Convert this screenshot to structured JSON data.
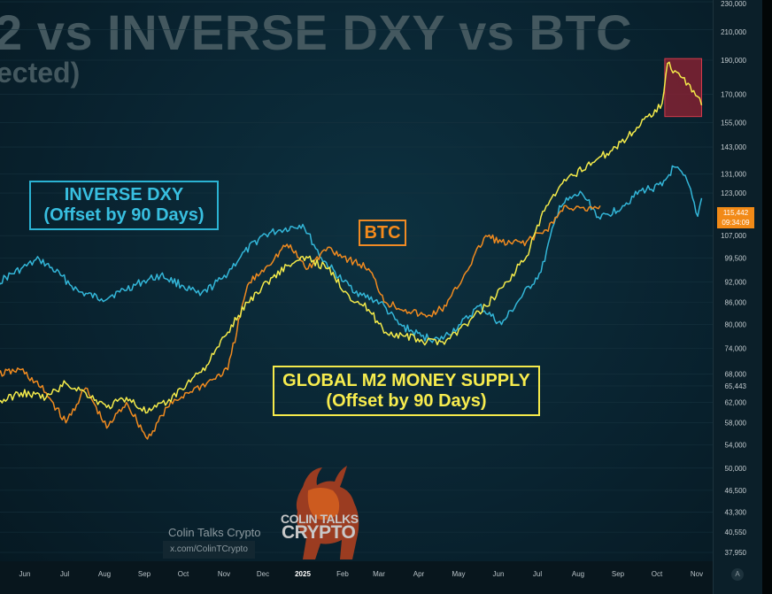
{
  "titles": {
    "main": "2 vs INVERSE DXY vs BTC",
    "sub": "ected)"
  },
  "labels": {
    "dxy_line1": "INVERSE DXY",
    "dxy_line2": "(Offset by 90 Days)",
    "btc": "BTC",
    "m2_line1": "GLOBAL M2 MONEY SUPPLY",
    "m2_line2": "(Offset by 90 Days)"
  },
  "price_tag": {
    "price": "115,442",
    "time": "09:34:09"
  },
  "watermark": {
    "name": "Colin Talks Crypto",
    "url": "x.com/ColinTCrypto",
    "logo_line1": "COLIN TALKS",
    "logo_line2": "CRYPTO"
  },
  "axis_button": "A",
  "colors": {
    "m2": "#f3ea4a",
    "btc": "#f08a1f",
    "dxy": "#33b6d8",
    "highlight": "#9b2233"
  },
  "chart_data": {
    "type": "line",
    "scale": "log",
    "y_ticks": [
      230000,
      210000,
      190000,
      170000,
      155000,
      143000,
      131000,
      123000,
      107000,
      99500,
      92000,
      86000,
      80000,
      74000,
      68000,
      65443,
      62000,
      58000,
      54000,
      50000,
      46500,
      43300,
      40550,
      37950
    ],
    "y_tick_labels": [
      "230,000",
      "210,000",
      "190,000",
      "170,000",
      "155,000",
      "143,000",
      "131,000",
      "123,000",
      "107,000",
      "99,500",
      "92,000",
      "86,000",
      "80,000",
      "74,000",
      "68,000",
      "65,443",
      "62,000",
      "58,000",
      "54,000",
      "50,000",
      "46,500",
      "43,300",
      "40,550",
      "37,950"
    ],
    "x_ticks": [
      "Jun",
      "Jul",
      "Aug",
      "Sep",
      "Oct",
      "Nov",
      "Dec",
      "2025",
      "Feb",
      "Mar",
      "Apr",
      "May",
      "Jun",
      "Jul",
      "Aug",
      "Sep",
      "Oct",
      "Nov"
    ],
    "series": [
      {
        "key": "m2",
        "values": [
          [
            "2024-05-15",
            62000
          ],
          [
            "2024-06-01",
            64000
          ],
          [
            "2024-06-20",
            63000
          ],
          [
            "2024-07-05",
            66000
          ],
          [
            "2024-07-20",
            64000
          ],
          [
            "2024-08-05",
            61000
          ],
          [
            "2024-08-20",
            63000
          ],
          [
            "2024-09-05",
            60000
          ],
          [
            "2024-09-20",
            62000
          ],
          [
            "2024-10-05",
            66000
          ],
          [
            "2024-10-20",
            70000
          ],
          [
            "2024-11-05",
            78000
          ],
          [
            "2024-11-20",
            86000
          ],
          [
            "2024-12-05",
            92000
          ],
          [
            "2024-12-20",
            97000
          ],
          [
            "2025-01-05",
            99500
          ],
          [
            "2025-01-20",
            96000
          ],
          [
            "2025-02-05",
            88000
          ],
          [
            "2025-02-20",
            84000
          ],
          [
            "2025-03-05",
            78000
          ],
          [
            "2025-03-20",
            77000
          ],
          [
            "2025-04-05",
            75500
          ],
          [
            "2025-04-20",
            76000
          ],
          [
            "2025-05-05",
            80000
          ],
          [
            "2025-05-20",
            85000
          ],
          [
            "2025-06-05",
            92000
          ],
          [
            "2025-06-20",
            100000
          ],
          [
            "2025-07-05",
            118000
          ],
          [
            "2025-07-20",
            128000
          ],
          [
            "2025-08-05",
            135000
          ],
          [
            "2025-08-20",
            140000
          ],
          [
            "2025-09-05",
            148000
          ],
          [
            "2025-09-20",
            158000
          ],
          [
            "2025-10-01",
            165000
          ],
          [
            "2025-10-05",
            188000
          ],
          [
            "2025-10-15",
            180000
          ],
          [
            "2025-10-25",
            172000
          ],
          [
            "2025-10-31",
            164000
          ]
        ]
      },
      {
        "key": "btc",
        "values": [
          [
            "2024-05-15",
            68000
          ],
          [
            "2024-06-01",
            69000
          ],
          [
            "2024-06-20",
            64000
          ],
          [
            "2024-07-05",
            58000
          ],
          [
            "2024-07-20",
            65000
          ],
          [
            "2024-08-05",
            57000
          ],
          [
            "2024-08-20",
            62000
          ],
          [
            "2024-09-05",
            55000
          ],
          [
            "2024-09-20",
            61000
          ],
          [
            "2024-10-05",
            64000
          ],
          [
            "2024-10-20",
            66000
          ],
          [
            "2024-11-05",
            69000
          ],
          [
            "2024-11-20",
            91000
          ],
          [
            "2024-12-05",
            97000
          ],
          [
            "2024-12-20",
            104000
          ],
          [
            "2025-01-05",
            96000
          ],
          [
            "2025-01-20",
            103000
          ],
          [
            "2025-02-05",
            99000
          ],
          [
            "2025-02-20",
            96000
          ],
          [
            "2025-03-05",
            86000
          ],
          [
            "2025-03-20",
            84000
          ],
          [
            "2025-04-05",
            82000
          ],
          [
            "2025-04-20",
            85000
          ],
          [
            "2025-05-05",
            95000
          ],
          [
            "2025-05-20",
            107000
          ],
          [
            "2025-06-05",
            104000
          ],
          [
            "2025-06-20",
            105000
          ],
          [
            "2025-07-05",
            109000
          ],
          [
            "2025-07-20",
            118000
          ],
          [
            "2025-08-05",
            116000
          ],
          [
            "2025-08-15",
            118000
          ]
        ]
      },
      {
        "key": "dxy",
        "values": [
          [
            "2024-05-15",
            92000
          ],
          [
            "2024-06-01",
            96000
          ],
          [
            "2024-06-15",
            99000
          ],
          [
            "2024-07-01",
            94000
          ],
          [
            "2024-07-15",
            89000
          ],
          [
            "2024-08-01",
            87000
          ],
          [
            "2024-08-15",
            89000
          ],
          [
            "2024-09-01",
            92000
          ],
          [
            "2024-09-15",
            94000
          ],
          [
            "2024-10-01",
            91000
          ],
          [
            "2024-10-15",
            88000
          ],
          [
            "2024-11-01",
            93000
          ],
          [
            "2024-11-15",
            100000
          ],
          [
            "2024-12-01",
            107000
          ],
          [
            "2024-12-15",
            109000
          ],
          [
            "2025-01-01",
            111000
          ],
          [
            "2025-01-15",
            99500
          ],
          [
            "2025-02-01",
            92000
          ],
          [
            "2025-02-15",
            88000
          ],
          [
            "2025-03-01",
            86000
          ],
          [
            "2025-03-15",
            80000
          ],
          [
            "2025-04-01",
            77000
          ],
          [
            "2025-04-15",
            76000
          ],
          [
            "2025-05-01",
            80000
          ],
          [
            "2025-05-15",
            85000
          ],
          [
            "2025-06-01",
            80000
          ],
          [
            "2025-06-15",
            87000
          ],
          [
            "2025-07-01",
            95000
          ],
          [
            "2025-07-15",
            118000
          ],
          [
            "2025-08-01",
            123000
          ],
          [
            "2025-08-15",
            113000
          ],
          [
            "2025-09-01",
            118000
          ],
          [
            "2025-09-15",
            124000
          ],
          [
            "2025-10-01",
            126000
          ],
          [
            "2025-10-10",
            134000
          ],
          [
            "2025-10-20",
            128000
          ],
          [
            "2025-10-28",
            114000
          ],
          [
            "2025-10-31",
            121000
          ]
        ]
      }
    ],
    "highlight": {
      "x_start": "2025-10-03",
      "x_end": "2025-10-31",
      "y_low": 158000,
      "y_high": 191000
    }
  }
}
